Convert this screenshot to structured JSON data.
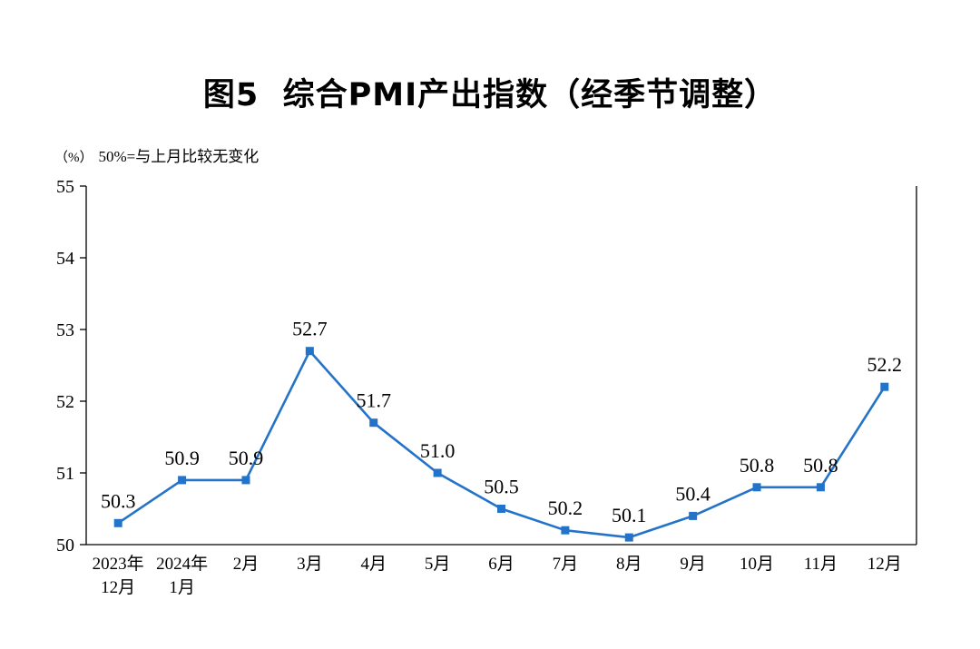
{
  "title": "图5  综合PMI产出指数（经季节调整）",
  "unit_label": "（%）",
  "note": "50%=与上月比较无变化",
  "chart_data": {
    "type": "line",
    "title": "图5 综合PMI产出指数（经季节调整）",
    "categories": [
      [
        "2023年",
        "12月"
      ],
      [
        "2024年",
        "1月"
      ],
      [
        "2月"
      ],
      [
        "3月"
      ],
      [
        "4月"
      ],
      [
        "5月"
      ],
      [
        "6月"
      ],
      [
        "7月"
      ],
      [
        "8月"
      ],
      [
        "9月"
      ],
      [
        "10月"
      ],
      [
        "11月"
      ],
      [
        "12月"
      ]
    ],
    "values": [
      50.3,
      50.9,
      50.9,
      52.7,
      51.7,
      51.0,
      50.5,
      50.2,
      50.1,
      50.4,
      50.8,
      50.8,
      52.2
    ],
    "series_name": "综合PMI产出指数",
    "xlabel": "",
    "ylabel": "（%）",
    "ylim": [
      50,
      55
    ],
    "ytick_step": 1,
    "grid": false,
    "legend": "none",
    "line_color": "#2373C8",
    "marker": "square",
    "axis_color": "#000000",
    "data_labels": [
      "50.3",
      "50.9",
      "50.9",
      "52.7",
      "51.7",
      "51.0",
      "50.5",
      "50.2",
      "50.1",
      "50.4",
      "50.8",
      "50.8",
      "52.2"
    ]
  }
}
